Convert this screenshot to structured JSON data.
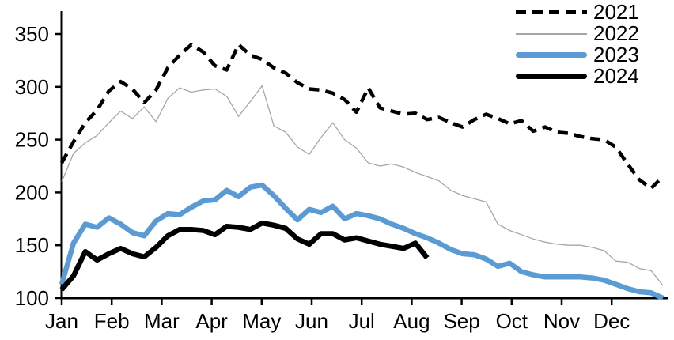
{
  "colors": {
    "series_2021": "#000000",
    "series_2022": "#A6A6A6",
    "series_2023": "#5B9BD5",
    "series_2024": "#000000",
    "axis": "#000000",
    "background": "#FFFFFF"
  },
  "legend": {
    "position": "top-right",
    "items": [
      {
        "label": "2021",
        "style": "dashed-black-line"
      },
      {
        "label": "2022",
        "style": "thin-gray-line"
      },
      {
        "label": "2023",
        "style": "thick-blue-line"
      },
      {
        "label": "2024",
        "style": "thick-black-line"
      }
    ]
  },
  "chart_data": {
    "type": "line",
    "title": "",
    "xlabel": "",
    "ylabel": "",
    "grid": false,
    "legend_position": "top-right",
    "x_unit": "weekly",
    "x_axis": {
      "tick_labels": [
        "Jan",
        "Feb",
        "Mar",
        "Apr",
        "May",
        "Jun",
        "Jul",
        "Aug",
        "Sep",
        "Oct",
        "Nov",
        "Dec"
      ]
    },
    "y_axis": {
      "ticks": [
        100,
        150,
        200,
        250,
        300,
        350
      ],
      "range": [
        100,
        372
      ]
    },
    "series": [
      {
        "name": "2021",
        "color": "#000000",
        "style": "dashed",
        "width": 4.5,
        "values": [
          228,
          248,
          266,
          278,
          296,
          305,
          298,
          285,
          297,
          318,
          330,
          340,
          333,
          320,
          316,
          340,
          330,
          326,
          318,
          313,
          304,
          298,
          297,
          294,
          288,
          276,
          299,
          280,
          277,
          274,
          275,
          269,
          271,
          266,
          262,
          269,
          274,
          270,
          265,
          268,
          258,
          262,
          257,
          256,
          253,
          251,
          250,
          243,
          227,
          212,
          204,
          215
        ]
      },
      {
        "name": "2022",
        "color": "#A6A6A6",
        "style": "solid",
        "width": 1.3,
        "values": [
          210,
          237,
          247,
          254,
          266,
          277,
          270,
          281,
          267,
          289,
          299,
          295,
          297,
          298,
          291,
          272,
          286,
          301,
          263,
          257,
          243,
          236,
          252,
          266,
          250,
          242,
          228,
          225,
          227,
          224,
          219,
          215,
          211,
          202,
          197,
          194,
          191,
          170,
          164,
          160,
          156,
          153,
          151,
          150,
          150,
          148,
          145,
          135,
          134,
          128,
          126,
          112
        ]
      },
      {
        "name": "2023",
        "color": "#5B9BD5",
        "style": "solid",
        "width": 6.5,
        "values": [
          113,
          152,
          170,
          167,
          176,
          170,
          162,
          159,
          173,
          180,
          179,
          186,
          192,
          193,
          202,
          196,
          205,
          207,
          197,
          185,
          174,
          184,
          181,
          187,
          175,
          180,
          178,
          175,
          170,
          166,
          161,
          157,
          152,
          146,
          142,
          141,
          137,
          130,
          133,
          125,
          122,
          120,
          120,
          120,
          120,
          119,
          117,
          113,
          109,
          106,
          105,
          100
        ]
      },
      {
        "name": "2024",
        "color": "#000000",
        "style": "solid",
        "width": 6.5,
        "values": [
          108,
          121,
          144,
          136,
          142,
          147,
          142,
          139,
          148,
          159,
          165,
          165,
          164,
          160,
          168,
          167,
          165,
          171,
          169,
          166,
          156,
          151,
          161,
          161,
          155,
          157,
          154,
          151,
          149,
          147,
          152,
          138
        ]
      }
    ]
  }
}
